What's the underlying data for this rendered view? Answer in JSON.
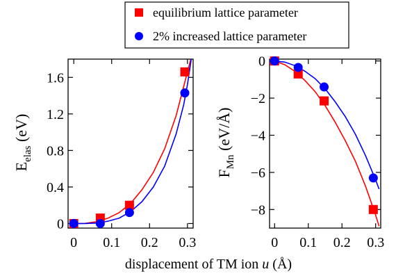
{
  "legend": {
    "entries": [
      {
        "label": "equilibrium lattice parameter",
        "color": "#ff0000",
        "marker": "square"
      },
      {
        "label": "2% increased lattice parameter",
        "color": "#0000ff",
        "marker": "circle"
      }
    ]
  },
  "xlabel": {
    "prefix": "displacement of TM ion ",
    "var": "u",
    "unit": " (Å)"
  },
  "chart_data": [
    {
      "type": "scatter",
      "panel": "left",
      "ylabel": {
        "main": "E",
        "sub": "elas",
        "unit": " (eV)"
      },
      "xlim": [
        -0.015,
        0.315
      ],
      "ylim": [
        -0.05,
        1.8
      ],
      "xticks": [
        0,
        0.1,
        0.2,
        0.3
      ],
      "xticklabels": [
        "0",
        "0.1",
        "0.2",
        "0.3"
      ],
      "yticks": [
        0,
        0.4,
        0.8,
        1.2,
        1.6
      ],
      "yticklabels": [
        "0",
        "0.4",
        "0.8",
        "1.2",
        "1.6"
      ],
      "series": [
        {
          "name": "equilibrium lattice parameter",
          "color": "#ff0000",
          "marker": "square",
          "x": [
            0,
            0.07,
            0.147,
            0.293
          ],
          "y": [
            0,
            0.06,
            0.2,
            1.66
          ]
        },
        {
          "name": "2% increased lattice parameter",
          "color": "#0000ff",
          "marker": "circle",
          "x": [
            0,
            0.07,
            0.147,
            0.293
          ],
          "y": [
            0,
            0.0,
            0.12,
            1.43
          ]
        }
      ],
      "fits": [
        {
          "color": "#ff0000",
          "x": [
            0,
            0.03,
            0.06,
            0.09,
            0.12,
            0.15,
            0.18,
            0.21,
            0.24,
            0.27,
            0.29,
            0.31
          ],
          "y": [
            0,
            0.002,
            0.02,
            0.058,
            0.12,
            0.22,
            0.37,
            0.56,
            0.82,
            1.18,
            1.5,
            1.82
          ]
        },
        {
          "color": "#0000ff",
          "x": [
            0,
            0.03,
            0.06,
            0.09,
            0.12,
            0.15,
            0.18,
            0.21,
            0.24,
            0.27,
            0.29,
            0.3,
            0.31
          ],
          "y": [
            0,
            0.0,
            0.005,
            0.025,
            0.06,
            0.13,
            0.24,
            0.4,
            0.63,
            0.98,
            1.3,
            1.52,
            1.8
          ]
        }
      ]
    },
    {
      "type": "scatter",
      "panel": "right",
      "ylabel": {
        "main": "F",
        "sub": "Mn",
        "unit": " (eV/Å)"
      },
      "xlim": [
        -0.015,
        0.315
      ],
      "ylim": [
        -9,
        0.1
      ],
      "xticks": [
        0,
        0.1,
        0.2,
        0.3
      ],
      "xticklabels": [
        "0",
        "0.1",
        "0.2",
        "0.3"
      ],
      "yticks": [
        0,
        -2,
        -4,
        -6,
        -8
      ],
      "yticklabels": [
        "0",
        "−2",
        "−4",
        "−6",
        "−8"
      ],
      "series": [
        {
          "name": "equilibrium lattice parameter",
          "color": "#ff0000",
          "marker": "square",
          "x": [
            0,
            0.07,
            0.147,
            0.293
          ],
          "y": [
            0,
            -0.7,
            -2.15,
            -8.0
          ]
        },
        {
          "name": "2% increased lattice parameter",
          "color": "#0000ff",
          "marker": "circle",
          "x": [
            0,
            0.07,
            0.147,
            0.293
          ],
          "y": [
            0,
            -0.35,
            -1.4,
            -6.3
          ]
        }
      ],
      "fits": [
        {
          "color": "#ff0000",
          "x": [
            0,
            0.03,
            0.06,
            0.09,
            0.12,
            0.15,
            0.18,
            0.21,
            0.24,
            0.27,
            0.3,
            0.31
          ],
          "y": [
            0,
            -0.2,
            -0.55,
            -1.05,
            -1.65,
            -2.4,
            -3.3,
            -4.3,
            -5.4,
            -6.75,
            -8.3,
            -8.9
          ]
        },
        {
          "color": "#0000ff",
          "x": [
            0,
            0.03,
            0.06,
            0.09,
            0.12,
            0.15,
            0.18,
            0.21,
            0.24,
            0.27,
            0.3,
            0.31
          ],
          "y": [
            0,
            -0.06,
            -0.25,
            -0.55,
            -0.95,
            -1.5,
            -2.2,
            -3.0,
            -3.95,
            -5.1,
            -6.4,
            -6.9
          ]
        }
      ]
    }
  ]
}
